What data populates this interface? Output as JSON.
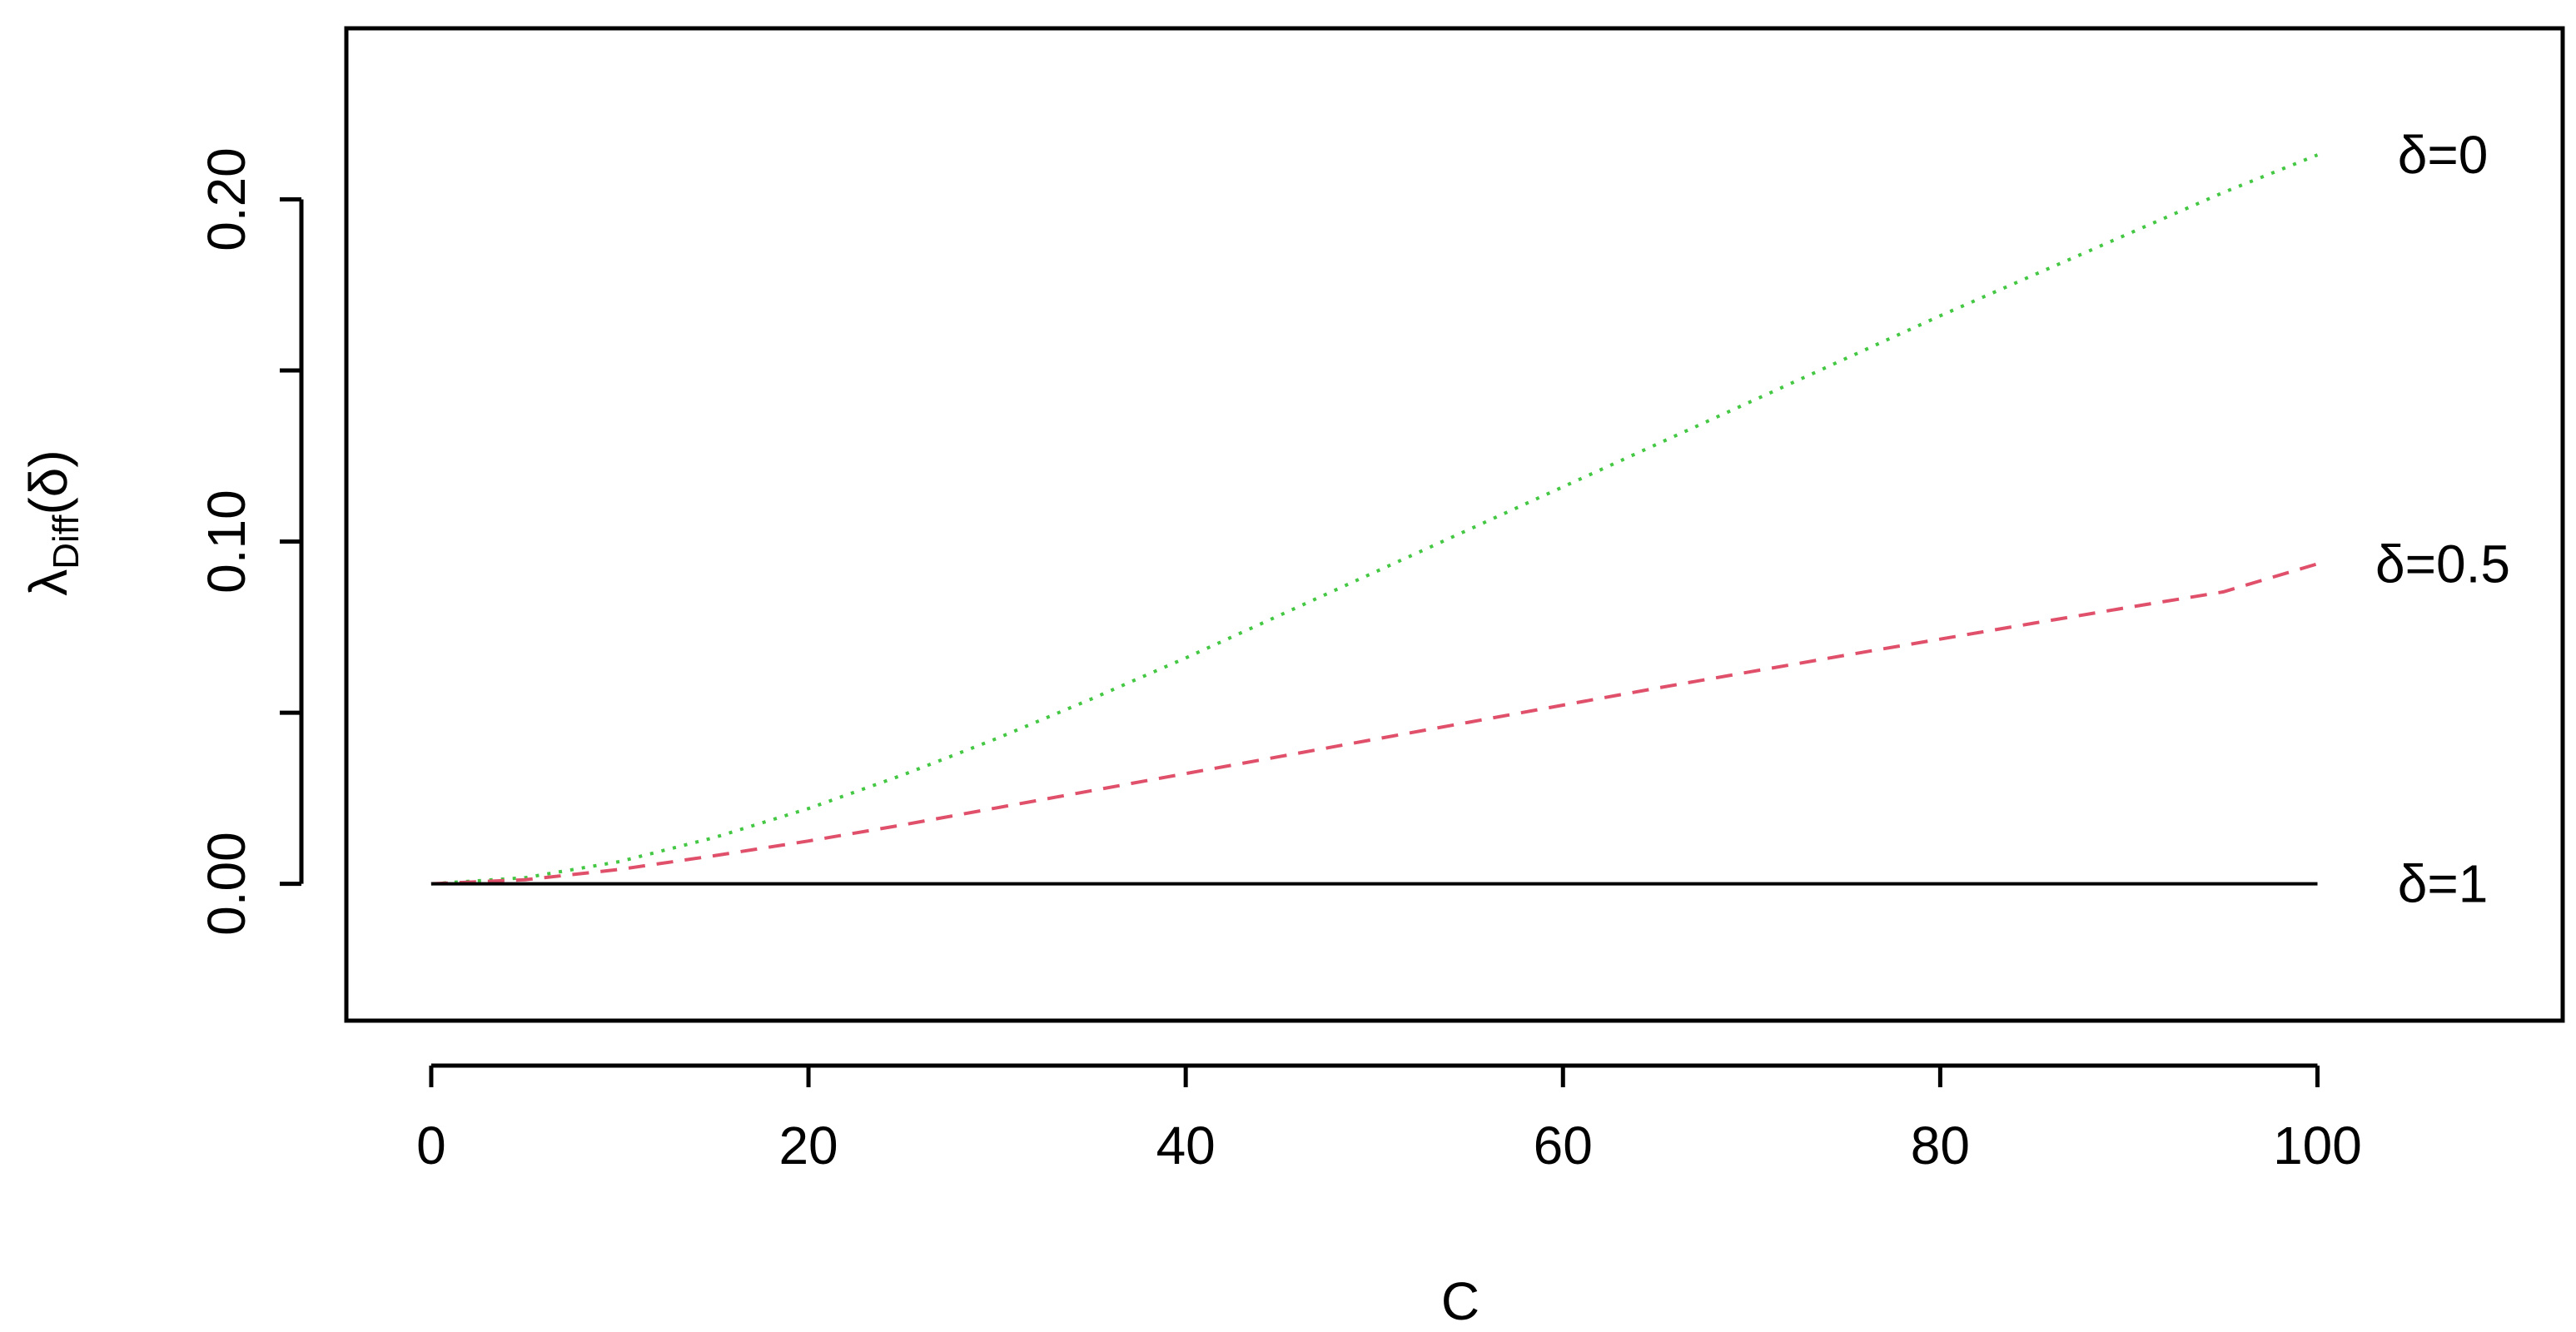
{
  "chart_data": {
    "type": "line",
    "xlabel": "C",
    "ylabel": {
      "main": "λ",
      "subscript": "Diff",
      "arg": "(δ)"
    },
    "xlim": [
      -4.5,
      113
    ],
    "ylim": [
      -0.04,
      0.25
    ],
    "x_ticks": [
      0,
      20,
      40,
      60,
      80,
      100
    ],
    "x_tick_labels": [
      "0",
      "20",
      "40",
      "60",
      "80",
      "100"
    ],
    "y_ticks": [
      0.0,
      0.05,
      0.1,
      0.15,
      0.2
    ],
    "y_tick_labels": [
      "0.00",
      "",
      "0.10",
      "",
      "0.20"
    ],
    "grid": false,
    "legend": "none",
    "x": [
      0,
      5,
      10,
      15,
      20,
      25,
      30,
      35,
      40,
      45,
      50,
      55,
      60,
      65,
      70,
      75,
      80,
      85,
      90,
      95,
      100
    ],
    "series": [
      {
        "name": "δ=0",
        "style": "dotted",
        "color": "#44c844",
        "values": [
          0.0,
          0.0018,
          0.0065,
          0.0135,
          0.022,
          0.0318,
          0.0425,
          0.054,
          0.066,
          0.0785,
          0.091,
          0.1035,
          0.116,
          0.1285,
          0.141,
          0.1535,
          0.166,
          0.178,
          0.19,
          0.202,
          0.213
        ]
      },
      {
        "name": "δ=0.5",
        "style": "dashed",
        "color": "#e0506a",
        "values": [
          0.0,
          0.0012,
          0.0042,
          0.0082,
          0.0125,
          0.0172,
          0.0222,
          0.0272,
          0.0322,
          0.0372,
          0.0422,
          0.0472,
          0.0522,
          0.0572,
          0.062,
          0.0668,
          0.0715,
          0.0762,
          0.0808,
          0.0853,
          0.0935
        ]
      },
      {
        "name": "δ=1",
        "style": "solid",
        "color": "#000000",
        "values": [
          0,
          0,
          0,
          0,
          0,
          0,
          0,
          0,
          0,
          0,
          0,
          0,
          0,
          0,
          0,
          0,
          0,
          0,
          0,
          0,
          0
        ]
      }
    ]
  }
}
